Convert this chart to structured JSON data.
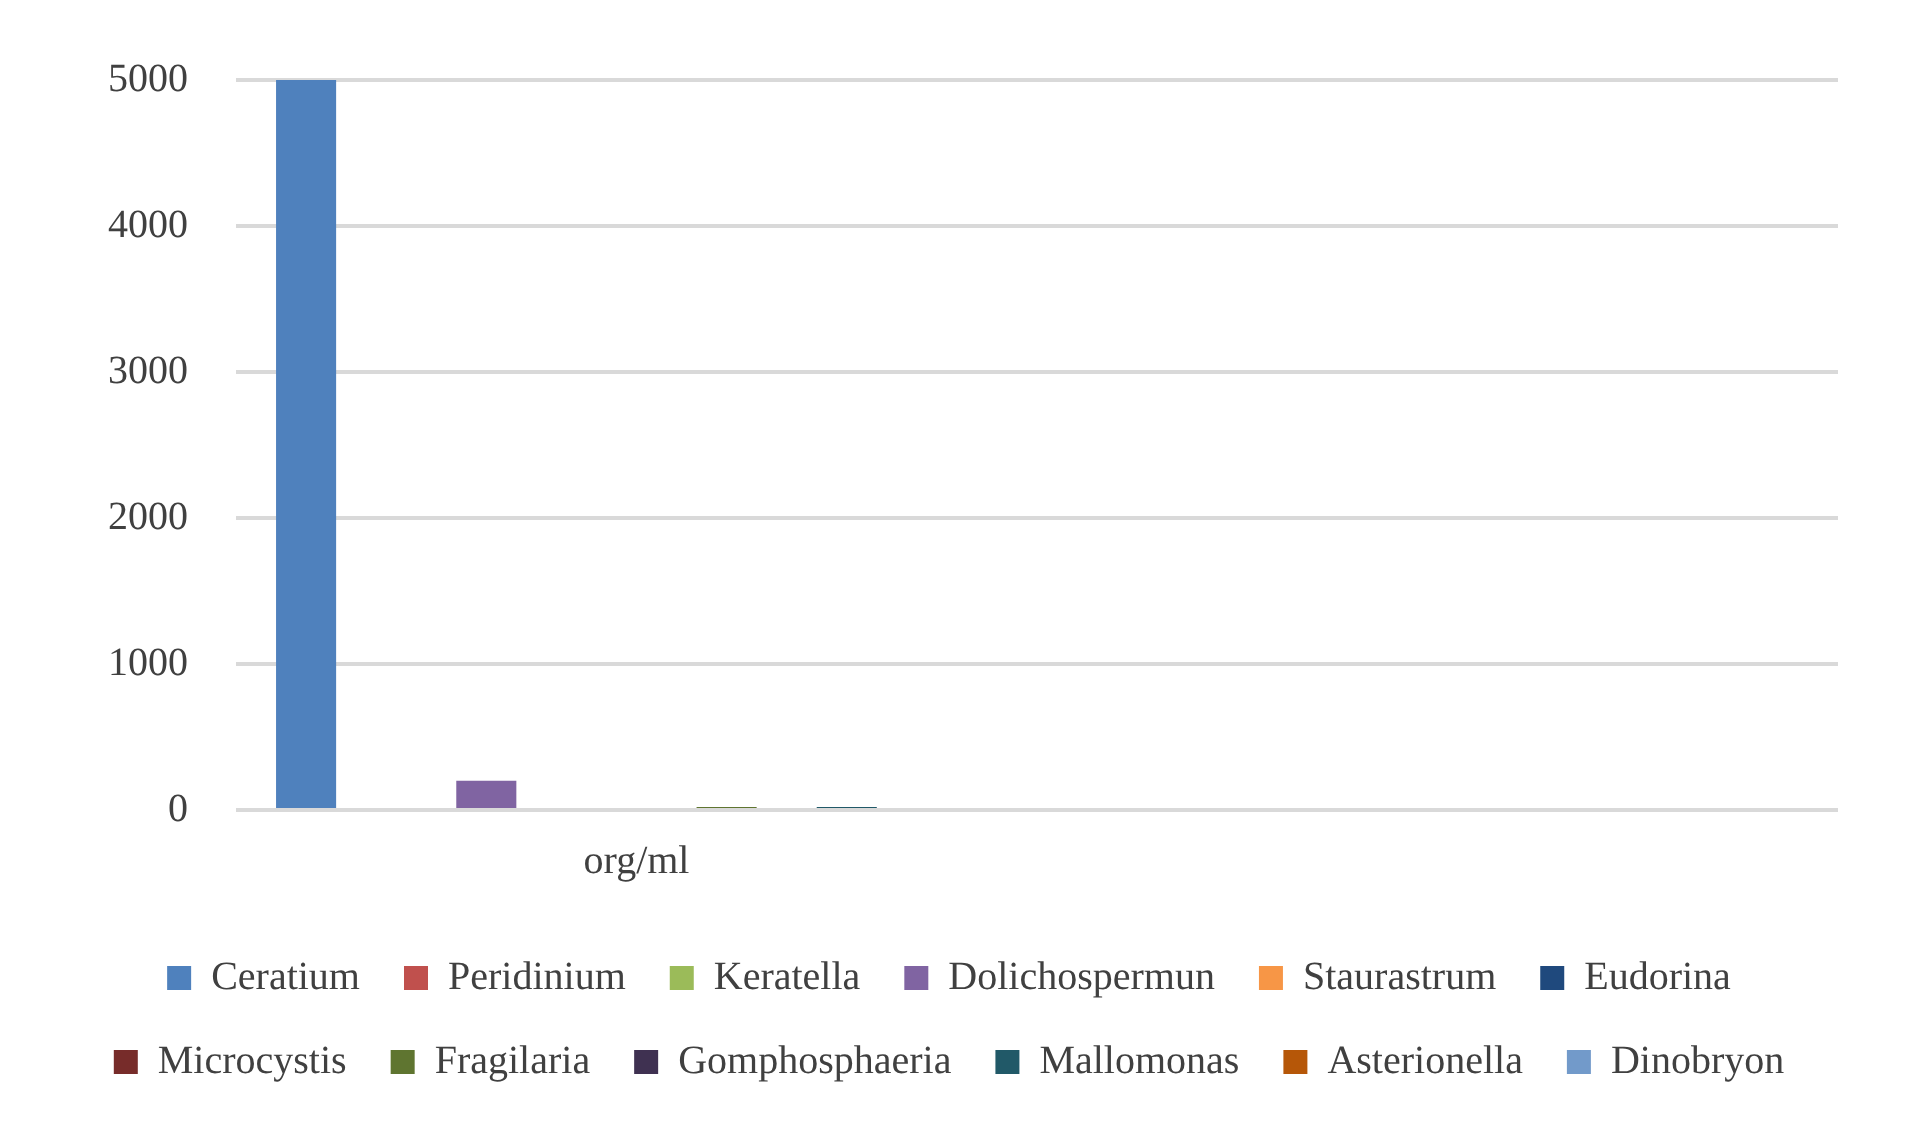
{
  "chart_data": {
    "type": "bar",
    "categories": [
      "org/ml",
      null
    ],
    "series": [
      {
        "name": "Ceratium",
        "color": "#4f81bd",
        "values": [
          5000,
          null
        ]
      },
      {
        "name": "Peridinium",
        "color": "#c0504d",
        "values": [
          0,
          null
        ]
      },
      {
        "name": "Keratella",
        "color": "#9bbb59",
        "values": [
          0,
          null
        ]
      },
      {
        "name": "Dolichospermun",
        "color": "#8064a2",
        "values": [
          200,
          null
        ]
      },
      {
        "name": "Staurastrum",
        "color": "#f79646",
        "values": [
          0,
          null
        ]
      },
      {
        "name": "Eudorina",
        "color": "#1f497d",
        "values": [
          0,
          null
        ]
      },
      {
        "name": "Microcystis",
        "color": "#772c2a",
        "values": [
          0,
          null
        ]
      },
      {
        "name": "Fragilaria",
        "color": "#5f7530",
        "values": [
          20,
          null
        ]
      },
      {
        "name": "Gomphosphaeria",
        "color": "#3f3151",
        "values": [
          0,
          null
        ]
      },
      {
        "name": "Mallomonas",
        "color": "#215968",
        "values": [
          20,
          null
        ]
      },
      {
        "name": "Asterionella",
        "color": "#b65708",
        "values": [
          0,
          null
        ]
      },
      {
        "name": "Dinobryon",
        "color": "#729aca",
        "values": [
          0,
          null
        ]
      }
    ],
    "ylim": [
      0,
      5000
    ],
    "yticks": [
      0,
      1000,
      2000,
      3000,
      4000,
      5000
    ],
    "grid": "y",
    "legend": "bottom"
  }
}
